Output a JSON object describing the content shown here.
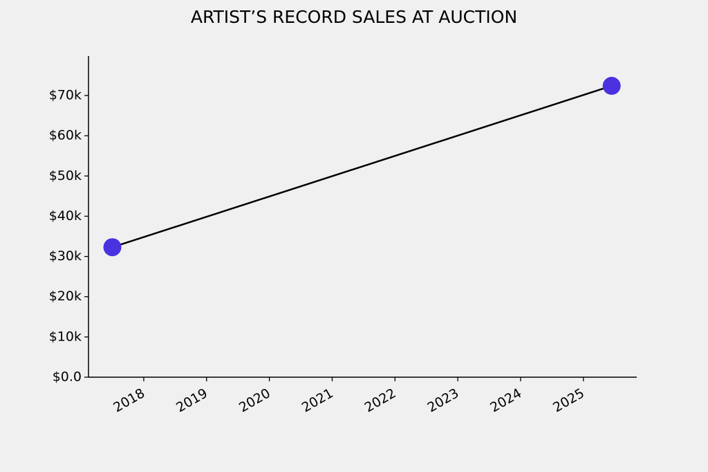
{
  "chart_data": {
    "type": "line",
    "title": "ARTIST’S RECORD SALES AT AUCTION",
    "x": [
      2017.5,
      2025.45
    ],
    "values": [
      32300,
      72400
    ],
    "line_color": "#000000",
    "marker_color": "#4a32e0",
    "xlim": [
      2017.12,
      2025.85
    ],
    "xticks": [
      2018,
      2019,
      2020,
      2021,
      2022,
      2023,
      2024,
      2025
    ],
    "ylim": [
      0,
      79800
    ],
    "yticks": [
      {
        "value": 0,
        "label": "$0.0"
      },
      {
        "value": 10000,
        "label": "$10k"
      },
      {
        "value": 20000,
        "label": "$20k"
      },
      {
        "value": 30000,
        "label": "$30k"
      },
      {
        "value": 40000,
        "label": "$40k"
      },
      {
        "value": 50000,
        "label": "$50k"
      },
      {
        "value": 60000,
        "label": "$60k"
      },
      {
        "value": 70000,
        "label": "$70k"
      }
    ],
    "grid": false
  }
}
